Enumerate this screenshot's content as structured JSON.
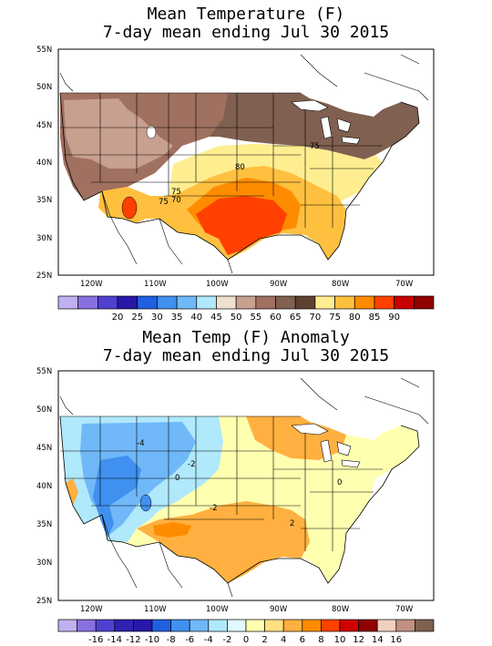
{
  "panels": [
    {
      "title_line1": "Mean Temperature (F)",
      "title_line2": "7-day mean ending Jul 30 2015",
      "lat_labels": [
        "55N",
        "50N",
        "45N",
        "40N",
        "35N",
        "30N",
        "25N"
      ],
      "lon_labels": [
        "120W",
        "110W",
        "100W",
        "90W",
        "80W",
        "70W"
      ],
      "contour_labels": [
        "75",
        "80",
        "70",
        "75",
        "75"
      ],
      "colorbar": {
        "colors": [
          "#c0b0f0",
          "#8870e0",
          "#5040d0",
          "#2818a8",
          "#2060e0",
          "#4090f0",
          "#70b8f8",
          "#b0e8fc",
          "#f0e0d0",
          "#c8a090",
          "#a07060",
          "#806050",
          "#604030",
          "#ffee90",
          "#ffc040",
          "#ff8c00",
          "#ff4000",
          "#c80000",
          "#900000"
        ],
        "labels": [
          "20",
          "25",
          "30",
          "35",
          "40",
          "45",
          "50",
          "55",
          "60",
          "65",
          "70",
          "75",
          "80",
          "85",
          "90"
        ]
      }
    },
    {
      "title_line1": "Mean Temp (F) Anomaly",
      "title_line2": "7-day mean ending Jul 30 2015",
      "lat_labels": [
        "55N",
        "50N",
        "45N",
        "40N",
        "35N",
        "30N",
        "25N"
      ],
      "lon_labels": [
        "120W",
        "110W",
        "100W",
        "90W",
        "80W",
        "70W"
      ],
      "contour_labels": [
        "-4",
        "-2",
        "0",
        "-2",
        "0",
        "2"
      ],
      "colorbar": {
        "colors": [
          "#c0b0f0",
          "#8870e0",
          "#5040d0",
          "#3020b0",
          "#2818a8",
          "#2060e0",
          "#4090f0",
          "#70b8f8",
          "#b0e8fc",
          "#e0f8ff",
          "#ffffb0",
          "#ffe080",
          "#ffb040",
          "#ff8c00",
          "#ff4000",
          "#d00000",
          "#900000",
          "#f0d0c0",
          "#c09080",
          "#806050"
        ],
        "labels": [
          "-16",
          "-14",
          "-12",
          "-10",
          "-8",
          "-6",
          "-4",
          "-2",
          "0",
          "2",
          "4",
          "6",
          "8",
          "10",
          "12",
          "14",
          "16"
        ]
      }
    }
  ]
}
